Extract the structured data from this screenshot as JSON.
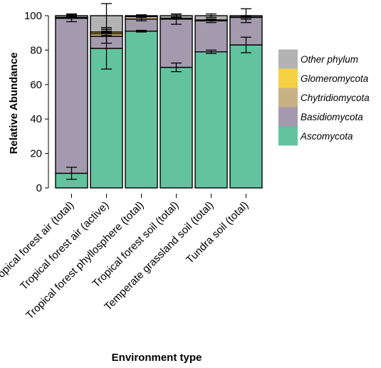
{
  "chart_data": {
    "type": "bar",
    "stacked": true,
    "xlabel": "Environment type",
    "ylabel": "Relative Abundance",
    "ylim": [
      0,
      100
    ],
    "yticks": [
      0,
      20,
      40,
      60,
      80,
      100
    ],
    "categories": [
      "Tropical forest air (total)",
      "Tropical forest air (active)",
      "Tropical forest phyllosphere (total)",
      "Tropical forest soil (total)",
      "Temperate grassland soil (total)",
      "Tundra soil (total)"
    ],
    "series": [
      {
        "name": "Ascomycota",
        "color": "#63c3a0",
        "values": [
          8.5,
          81,
          91,
          70,
          79,
          83
        ],
        "error": [
          3.5,
          12,
          0.5,
          2.5,
          1,
          4.5
        ]
      },
      {
        "name": "Basidiomycota",
        "color": "#a49aae",
        "values": [
          90,
          7,
          7,
          28,
          18,
          16
        ],
        "error": [
          2,
          4,
          1,
          3,
          1,
          1
        ]
      },
      {
        "name": "Chytridiomycota",
        "color": "#c9b186",
        "values": [
          0.5,
          1.5,
          1.5,
          0.5,
          0.5,
          0.2
        ],
        "error": [
          0.5,
          1,
          0.5,
          0.5,
          0.5,
          0.3
        ]
      },
      {
        "name": "Glomeromycota",
        "color": "#f5d144",
        "values": [
          0,
          1,
          0,
          0,
          0,
          0
        ],
        "error": [
          0,
          0.5,
          0,
          0,
          0,
          0
        ]
      },
      {
        "name": "Other phylum",
        "color": "#b3b3b3",
        "values": [
          1,
          9.5,
          0.5,
          1.5,
          2.5,
          0.8
        ],
        "error": [
          1,
          7,
          0.5,
          0.8,
          1,
          4
        ]
      }
    ],
    "legend": {
      "position": "right",
      "order": [
        "Other phylum",
        "Glomeromycota",
        "Chytridiomycota",
        "Basidiomycota",
        "Ascomycota"
      ]
    },
    "grid": false
  }
}
